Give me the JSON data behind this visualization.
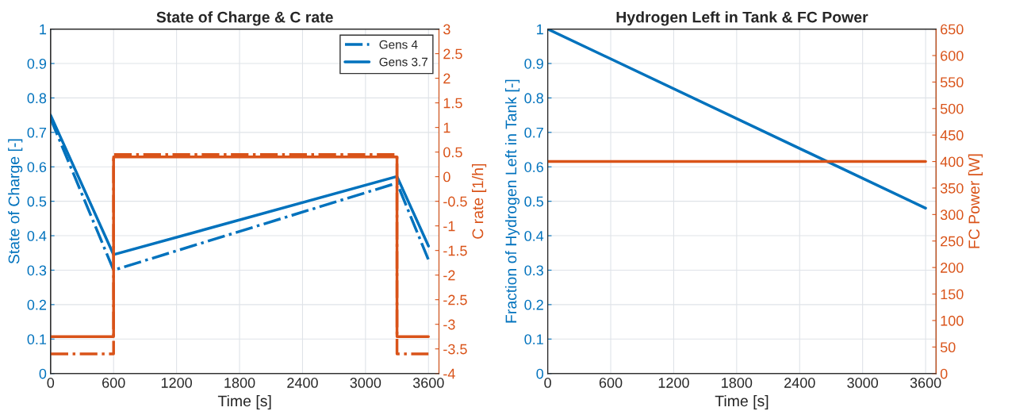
{
  "chart_data": [
    {
      "type": "line",
      "title": "State of Charge & C rate",
      "xlabel": "Time [s]",
      "ylabel": "State of Charge [-]",
      "y2label": "C rate [1/h]",
      "xlim": [
        0,
        3700
      ],
      "xticks": [
        0,
        600,
        1200,
        1800,
        2400,
        3000,
        3600
      ],
      "ylim": [
        0,
        1
      ],
      "yticks": [
        0,
        0.1,
        0.2,
        0.3,
        0.4,
        0.5,
        0.6,
        0.7,
        0.8,
        0.9,
        1
      ],
      "y2lim": [
        -4,
        3
      ],
      "y2ticks": [
        -4,
        -3.5,
        -3,
        -2.5,
        -2,
        -1.5,
        -1,
        -0.5,
        0,
        0.5,
        1,
        1.5,
        2,
        2.5,
        3
      ],
      "grid": true,
      "legend": "top right",
      "series": [
        {
          "name": "Gens 4",
          "color": "#0072bd",
          "line_style": "dashed",
          "x": [
            0,
            600,
            3300,
            3600
          ],
          "values": [
            0.74,
            0.3,
            0.553,
            0.33
          ]
        },
        {
          "name": "Gens 3.7",
          "color": "#0072bd",
          "line_style": "solid",
          "x": [
            0,
            600,
            3300,
            3600
          ],
          "values": [
            0.75,
            0.345,
            0.572,
            0.37
          ]
        },
        {
          "type": "step",
          "axis": "y2",
          "color": "#d95319",
          "line_style": "dashed",
          "x": [
            0,
            600,
            3300,
            3600
          ],
          "values": [
            -3.6,
            0.45,
            -3.6,
            -3.6
          ]
        },
        {
          "type": "step",
          "axis": "y2",
          "color": "#d95319",
          "line_style": "solid",
          "x": [
            0,
            600,
            3300,
            3600
          ],
          "values": [
            -3.25,
            0.4,
            -3.25,
            -3.25
          ]
        }
      ]
    },
    {
      "type": "line",
      "title": "Hydrogen Left in Tank & FC Power",
      "xlabel": "Time [s]",
      "ylabel": "Fraction of Hydrogen Left in Tank [-]",
      "y2label": "FC Power [W]",
      "xlim": [
        0,
        3700
      ],
      "xticks": [
        0,
        600,
        1200,
        1800,
        2400,
        3000,
        3600
      ],
      "ylim": [
        0,
        1
      ],
      "yticks": [
        0,
        0.1,
        0.2,
        0.3,
        0.4,
        0.5,
        0.6,
        0.7,
        0.8,
        0.9,
        1
      ],
      "y2lim": [
        0,
        650
      ],
      "y2ticks": [
        0,
        50,
        100,
        150,
        200,
        250,
        300,
        350,
        400,
        450,
        500,
        550,
        600,
        650
      ],
      "grid": true,
      "series": [
        {
          "color": "#0072bd",
          "line_style": "solid",
          "x": [
            0,
            3600
          ],
          "values": [
            1,
            0.48
          ]
        },
        {
          "axis": "y2",
          "color": "#d95319",
          "line_style": "solid",
          "x": [
            0,
            3600
          ],
          "values": [
            400,
            400
          ]
        }
      ]
    }
  ]
}
